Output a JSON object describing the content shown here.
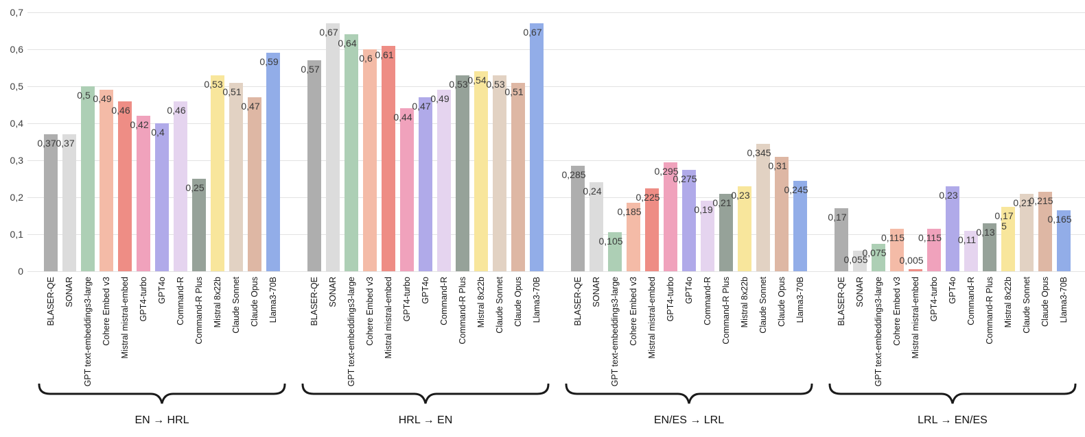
{
  "chart_data": {
    "type": "bar",
    "title": "",
    "xlabel": "",
    "ylabel": "",
    "ylim": [
      0,
      0.7
    ],
    "ytick_values": [
      0,
      0.1,
      0.2,
      0.3,
      0.4,
      0.5,
      0.6,
      0.7
    ],
    "ytick_labels": [
      "0",
      "0,1",
      "0,2",
      "0,3",
      "0,4",
      "0,5",
      "0,6",
      "0,7"
    ],
    "decimal_separator": ",",
    "grid": "horizontal",
    "legend_position": "none",
    "categories": [
      "BLASER-QE",
      "SONAR",
      "GPT text-embeddings3-large",
      "Cohere Embed v3",
      "Mistral mistral-embed",
      "GPT4-turbo",
      "GPT4o",
      "Command-R",
      "Command-R Plus",
      "Mistral 8x22b",
      "Claude Sonnet",
      "Claude Opus",
      "Llama3-70B"
    ],
    "category_colors": [
      "#aeaeae",
      "#dcdcdc",
      "#adcfb5",
      "#f4bba7",
      "#ee8d85",
      "#f0a2bc",
      "#b0aae9",
      "#e5d4ef",
      "#96a299",
      "#f8e69c",
      "#e2d2c3",
      "#deb7a4",
      "#92ade8"
    ],
    "groups": [
      {
        "label": "EN → HRL",
        "values": [
          0.37,
          0.37,
          0.5,
          0.49,
          0.46,
          0.42,
          0.4,
          0.46,
          0.25,
          0.53,
          0.51,
          0.47,
          0.59
        ],
        "value_labels": [
          "0,37",
          "0,37",
          "0,5",
          "0,49",
          "0,46",
          "0,42",
          "0,4",
          "0,46",
          "0,25",
          "0,53",
          "0,51",
          "0,47",
          "0,59"
        ]
      },
      {
        "label": "HRL → EN",
        "values": [
          0.57,
          0.67,
          0.64,
          0.6,
          0.61,
          0.44,
          0.47,
          0.49,
          0.53,
          0.54,
          0.53,
          0.51,
          0.67
        ],
        "value_labels": [
          "0,57",
          "0,67",
          "0,64",
          "0,6",
          "0,61",
          "0,44",
          "0,47",
          "0,49",
          "0,53",
          "0,54",
          "0,53",
          "0,51",
          "0,67"
        ]
      },
      {
        "label": "EN/ES → LRL",
        "values": [
          0.285,
          0.24,
          0.105,
          0.185,
          0.225,
          0.295,
          0.275,
          0.19,
          0.21,
          0.23,
          0.345,
          0.31,
          0.245
        ],
        "value_labels": [
          "0,285",
          "0,24",
          "0,105",
          "0,185",
          "0,225",
          "0,295",
          "0,275",
          "0,19",
          "0,21",
          "0,23",
          "0,345",
          "0,31",
          "0,245"
        ]
      },
      {
        "label": "LRL → EN/ES",
        "values": [
          0.17,
          0.055,
          0.075,
          0.115,
          0.005,
          0.115,
          0.23,
          0.11,
          0.13,
          0.175,
          0.21,
          0.215,
          0.165
        ],
        "value_labels": [
          "0,17",
          "0,055",
          "0,075",
          "0,115",
          "0,005",
          "0,115",
          "0,23",
          "0,11",
          "0,13",
          "0,17\n5",
          "0,21",
          "0,215",
          "0,165"
        ]
      }
    ]
  }
}
